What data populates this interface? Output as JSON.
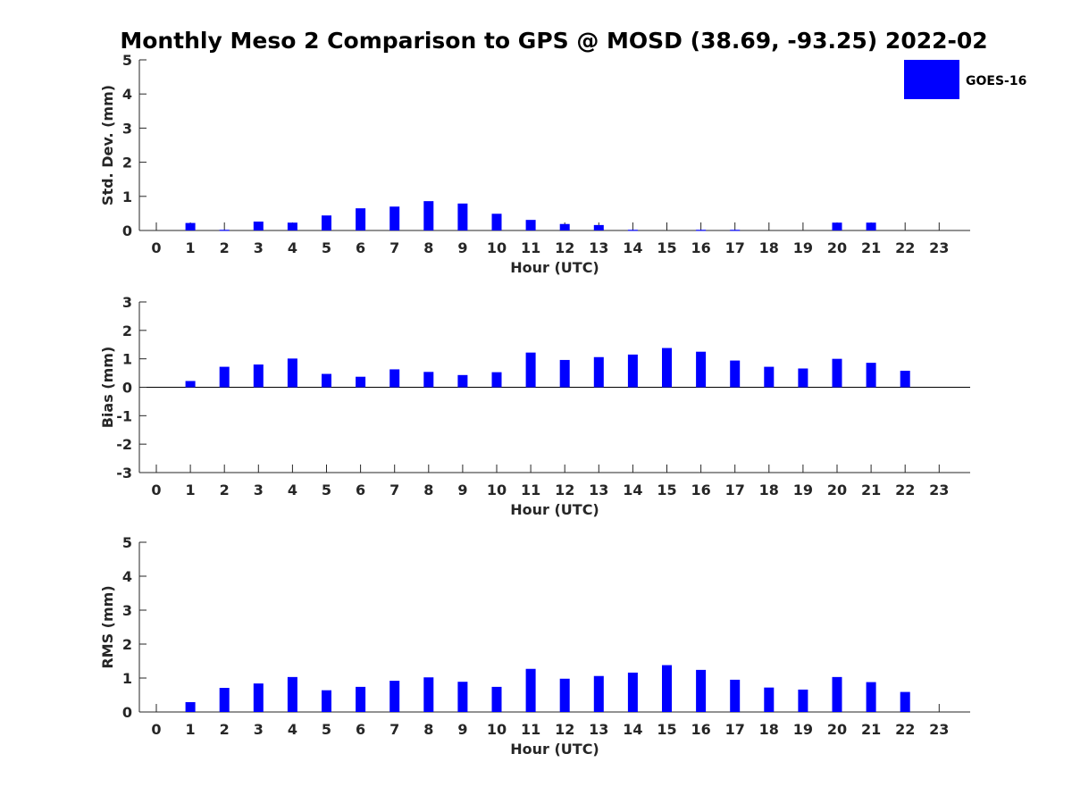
{
  "title": "Monthly Meso 2 Comparison to GPS @ MOSD (38.69, -93.25) 2022-02",
  "legend": {
    "label": "GOES-16",
    "color": "#0000ff"
  },
  "chart_data": [
    {
      "type": "bar",
      "name": "std-dev",
      "xlabel": "Hour (UTC)",
      "ylabel": "Std. Dev. (mm)",
      "ylim": [
        0,
        5
      ],
      "yticks": [
        0,
        1,
        2,
        3,
        4,
        5
      ],
      "categories": [
        "0",
        "1",
        "2",
        "3",
        "4",
        "5",
        "6",
        "7",
        "8",
        "9",
        "10",
        "11",
        "12",
        "13",
        "14",
        "15",
        "16",
        "17",
        "18",
        "19",
        "20",
        "21",
        "22",
        "23"
      ],
      "series": [
        {
          "name": "GOES-16",
          "values": [
            0,
            0.22,
            0.02,
            0.26,
            0.23,
            0.44,
            0.65,
            0.7,
            0.86,
            0.79,
            0.49,
            0.31,
            0.19,
            0.16,
            0.02,
            0,
            0.02,
            0.02,
            0,
            0,
            0.23,
            0.23,
            0,
            0
          ]
        }
      ]
    },
    {
      "type": "bar",
      "name": "bias",
      "xlabel": "Hour (UTC)",
      "ylabel": "Bias (mm)",
      "ylim": [
        -3,
        3
      ],
      "yticks": [
        -3,
        -2,
        -1,
        0,
        1,
        2,
        3
      ],
      "zero_line": true,
      "categories": [
        "0",
        "1",
        "2",
        "3",
        "4",
        "5",
        "6",
        "7",
        "8",
        "9",
        "10",
        "11",
        "12",
        "13",
        "14",
        "15",
        "16",
        "17",
        "18",
        "19",
        "20",
        "21",
        "22",
        "23"
      ],
      "series": [
        {
          "name": "GOES-16",
          "values": [
            0,
            0.22,
            0.72,
            0.8,
            1.01,
            0.47,
            0.37,
            0.63,
            0.54,
            0.43,
            0.53,
            1.22,
            0.96,
            1.06,
            1.15,
            1.38,
            1.25,
            0.94,
            0.72,
            0.66,
            1.0,
            0.86,
            0.58,
            0
          ]
        }
      ]
    },
    {
      "type": "bar",
      "name": "rms",
      "xlabel": "Hour (UTC)",
      "ylabel": "RMS (mm)",
      "ylim": [
        0,
        5
      ],
      "yticks": [
        0,
        1,
        2,
        3,
        4,
        5
      ],
      "categories": [
        "0",
        "1",
        "2",
        "3",
        "4",
        "5",
        "6",
        "7",
        "8",
        "9",
        "10",
        "11",
        "12",
        "13",
        "14",
        "15",
        "16",
        "17",
        "18",
        "19",
        "20",
        "21",
        "22",
        "23"
      ],
      "series": [
        {
          "name": "GOES-16",
          "values": [
            0,
            0.29,
            0.71,
            0.84,
            1.03,
            0.64,
            0.74,
            0.92,
            1.02,
            0.89,
            0.74,
            1.27,
            0.98,
            1.06,
            1.16,
            1.38,
            1.24,
            0.95,
            0.72,
            0.66,
            1.03,
            0.88,
            0.59,
            0
          ]
        }
      ]
    }
  ]
}
